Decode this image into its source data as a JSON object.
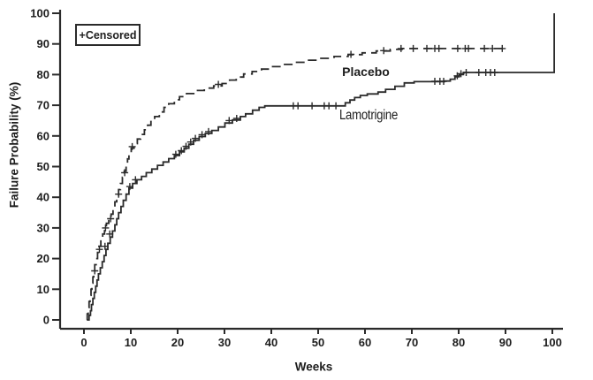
{
  "figure": {
    "background": "#ffffff",
    "ink_color": "#2a2a2a",
    "text_color": "#1d1d1d"
  },
  "chart_data": {
    "type": "line",
    "subtype": "kaplan-meier-step-failure-curve",
    "title": "",
    "xlabel": "Weeks",
    "ylabel": "Failure Probability (%)",
    "xlim": [
      0,
      102
    ],
    "ylim": [
      0,
      100
    ],
    "xticks": [
      0,
      10,
      20,
      30,
      40,
      50,
      60,
      70,
      80,
      90,
      100
    ],
    "yticks": [
      0,
      10,
      20,
      30,
      40,
      50,
      60,
      70,
      80,
      90,
      100
    ],
    "grid": false,
    "legend": {
      "label": "+Censored",
      "position": "top-left"
    },
    "series": [
      {
        "name": "Placebo",
        "label": "Placebo",
        "line_style": "dashed",
        "color": "#2a2a2a",
        "label_at": {
          "week": 60.2,
          "pct": 81
        },
        "points": [
          [
            0.6,
            0
          ],
          [
            0.7,
            2
          ],
          [
            0.9,
            4
          ],
          [
            1.1,
            6
          ],
          [
            1.3,
            8
          ],
          [
            1.5,
            10
          ],
          [
            1.7,
            12
          ],
          [
            1.9,
            14
          ],
          [
            2.1,
            16
          ],
          [
            2.3,
            18
          ],
          [
            2.6,
            20
          ],
          [
            2.9,
            22
          ],
          [
            3.2,
            24
          ],
          [
            3.6,
            26
          ],
          [
            4.0,
            28
          ],
          [
            4.4,
            30
          ],
          [
            4.8,
            31.5
          ],
          [
            5.3,
            33
          ],
          [
            5.8,
            34.5
          ],
          [
            6.2,
            36.5
          ],
          [
            6.6,
            38.5
          ],
          [
            7.0,
            40.5
          ],
          [
            7.4,
            42.5
          ],
          [
            7.8,
            44.5
          ],
          [
            8.2,
            46.5
          ],
          [
            8.6,
            48.5
          ],
          [
            9.0,
            50.5
          ],
          [
            9.3,
            52.5
          ],
          [
            9.6,
            54.5
          ],
          [
            10.1,
            56
          ],
          [
            10.7,
            57.5
          ],
          [
            11.4,
            59
          ],
          [
            12.1,
            60.5
          ],
          [
            12.9,
            62
          ],
          [
            13.6,
            63.5
          ],
          [
            14.3,
            65
          ],
          [
            15.1,
            66.3
          ],
          [
            16.1,
            67.8
          ],
          [
            17.1,
            69.3
          ],
          [
            18.1,
            70.5
          ],
          [
            19.3,
            71.8
          ],
          [
            20.4,
            72.8
          ],
          [
            21.9,
            73.8
          ],
          [
            23.7,
            74.8
          ],
          [
            25.7,
            75.6
          ],
          [
            27.7,
            76.3
          ],
          [
            29.5,
            77.1
          ],
          [
            31.1,
            78.2
          ],
          [
            32.5,
            79.2
          ],
          [
            34.1,
            80.2
          ],
          [
            35.9,
            81.0
          ],
          [
            37.9,
            81.8
          ],
          [
            39.9,
            82.6
          ],
          [
            42.4,
            83.3
          ],
          [
            44.9,
            84.0
          ],
          [
            47.4,
            84.7
          ],
          [
            50.4,
            85.3
          ],
          [
            53.4,
            85.9
          ],
          [
            56.4,
            86.5
          ],
          [
            59.4,
            87.1
          ],
          [
            62.4,
            87.7
          ],
          [
            65.4,
            88.2
          ],
          [
            67.9,
            88.5
          ],
          [
            90.0,
            88.5
          ]
        ],
        "censored": [
          [
            2.3,
            16
          ],
          [
            3.3,
            23
          ],
          [
            4.6,
            30
          ],
          [
            5.7,
            33
          ],
          [
            7.4,
            41
          ],
          [
            8.7,
            48
          ],
          [
            10.3,
            56.5
          ],
          [
            28.7,
            76.8
          ],
          [
            57.0,
            86.6
          ],
          [
            64.0,
            87.8
          ],
          [
            67.7,
            88.5
          ],
          [
            70.3,
            88.5
          ],
          [
            73.2,
            88.5
          ],
          [
            74.9,
            88.5
          ],
          [
            75.8,
            88.5
          ],
          [
            79.8,
            88.5
          ],
          [
            81.4,
            88.5
          ],
          [
            82.1,
            88.5
          ],
          [
            85.5,
            88.5
          ],
          [
            87.2,
            88.5
          ],
          [
            89.3,
            88.5
          ]
        ]
      },
      {
        "name": "Lamotrigine",
        "label": "Lamotrigine",
        "line_style": "solid",
        "color": "#2a2a2a",
        "label_at": {
          "week": 60.8,
          "pct": 66.5
        },
        "points": [
          [
            0.8,
            0
          ],
          [
            1.1,
            1.5
          ],
          [
            1.4,
            3
          ],
          [
            1.6,
            5
          ],
          [
            1.9,
            7
          ],
          [
            2.2,
            9
          ],
          [
            2.5,
            11
          ],
          [
            2.8,
            13
          ],
          [
            3.1,
            15
          ],
          [
            3.5,
            17
          ],
          [
            3.9,
            19
          ],
          [
            4.3,
            21
          ],
          [
            4.7,
            23
          ],
          [
            5.1,
            25
          ],
          [
            5.6,
            27
          ],
          [
            6.1,
            29
          ],
          [
            6.6,
            31
          ],
          [
            7.0,
            33
          ],
          [
            7.4,
            35
          ],
          [
            7.9,
            37
          ],
          [
            8.4,
            39
          ],
          [
            9.0,
            41
          ],
          [
            9.6,
            43
          ],
          [
            10.4,
            44.5
          ],
          [
            11.3,
            45.7
          ],
          [
            12.3,
            46.8
          ],
          [
            13.3,
            48
          ],
          [
            14.5,
            49.2
          ],
          [
            15.7,
            50.4
          ],
          [
            16.9,
            51.5
          ],
          [
            18.1,
            52.6
          ],
          [
            19.3,
            53.6
          ],
          [
            20.4,
            54.8
          ],
          [
            21.4,
            56
          ],
          [
            22.4,
            57.3
          ],
          [
            23.4,
            58.6
          ],
          [
            24.6,
            59.8
          ],
          [
            25.9,
            60.8
          ],
          [
            27.3,
            61.8
          ],
          [
            28.7,
            62.9
          ],
          [
            30.1,
            64.2
          ],
          [
            31.7,
            65.2
          ],
          [
            33.4,
            66.3
          ],
          [
            34.5,
            67.2
          ],
          [
            36.0,
            68.4
          ],
          [
            37.4,
            69.3
          ],
          [
            38.6,
            69.8
          ],
          [
            54.8,
            69.8
          ],
          [
            55.8,
            70.8
          ],
          [
            56.8,
            71.7
          ],
          [
            57.8,
            72.5
          ],
          [
            59.0,
            73.2
          ],
          [
            60.5,
            73.7
          ],
          [
            62.8,
            74.3
          ],
          [
            64.4,
            75.2
          ],
          [
            66.4,
            76.2
          ],
          [
            68.4,
            77.3
          ],
          [
            70.5,
            77.7
          ],
          [
            77.0,
            77.9
          ],
          [
            78.2,
            78.5
          ],
          [
            79.2,
            79.3
          ],
          [
            80.1,
            80.0
          ],
          [
            81.0,
            80.7
          ],
          [
            100.4,
            80.7
          ],
          [
            100.4,
            100
          ]
        ],
        "censored": [
          [
            4.5,
            24
          ],
          [
            5.5,
            28
          ],
          [
            9.8,
            43.5
          ],
          [
            11.0,
            45.7
          ],
          [
            19.6,
            54
          ],
          [
            20.8,
            55.2
          ],
          [
            21.8,
            56.6
          ],
          [
            22.8,
            58
          ],
          [
            23.8,
            59.2
          ],
          [
            25.2,
            60.4
          ],
          [
            26.6,
            61.4
          ],
          [
            31.0,
            65
          ],
          [
            32.6,
            65.7
          ],
          [
            44.7,
            69.8
          ],
          [
            45.7,
            69.8
          ],
          [
            48.7,
            69.8
          ],
          [
            51.3,
            69.8
          ],
          [
            52.3,
            69.8
          ],
          [
            53.8,
            69.8
          ],
          [
            74.9,
            77.8
          ],
          [
            76.0,
            77.8
          ],
          [
            76.8,
            77.8
          ],
          [
            79.7,
            79.6
          ],
          [
            80.5,
            80.3
          ],
          [
            81.6,
            80.7
          ],
          [
            84.3,
            80.7
          ],
          [
            85.8,
            80.7
          ],
          [
            86.8,
            80.7
          ],
          [
            87.7,
            80.7
          ]
        ]
      }
    ]
  }
}
